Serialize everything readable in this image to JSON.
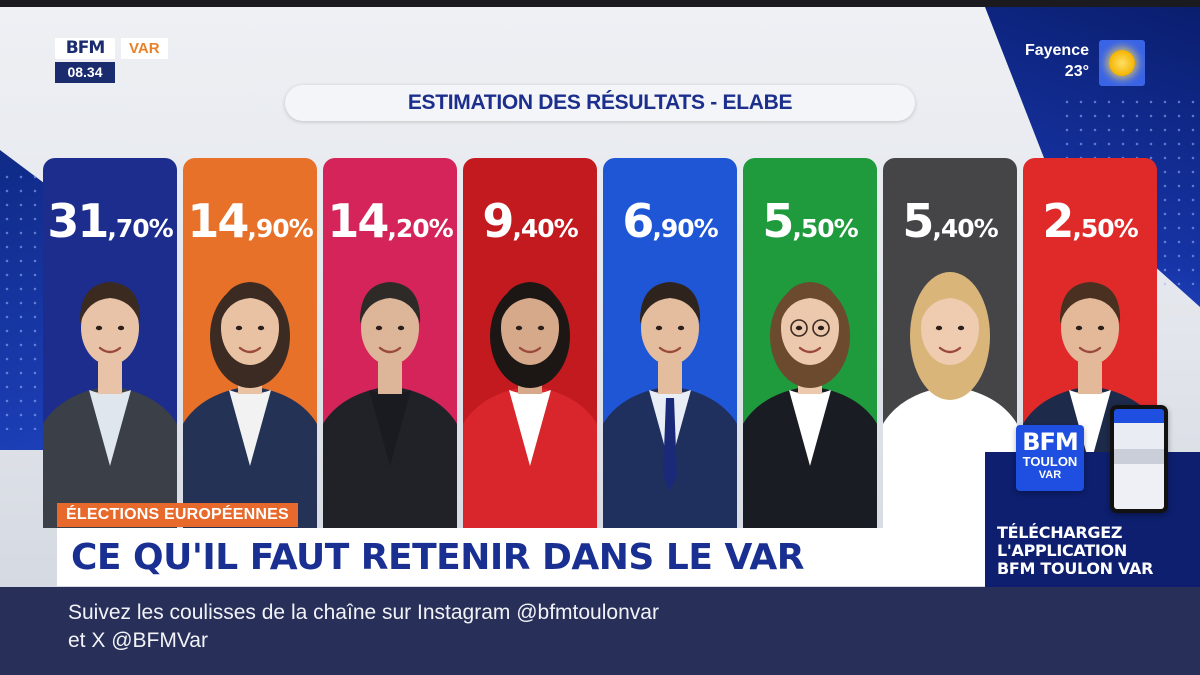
{
  "channel": {
    "brand": "BFM",
    "region": "VAR",
    "time": "08.34"
  },
  "weather": {
    "city": "Fayence",
    "temp": "23°",
    "icon": "sun-icon"
  },
  "graphic": {
    "title": "ESTIMATION DES RÉSULTATS - ELABE",
    "candidates": [
      {
        "whole": "31",
        "decimal": ",70%",
        "value": 31.7,
        "color": "#1d2d8e",
        "suit": "#3a3f48",
        "shirt": "#dfe6ee",
        "skin": "#e8c3a8",
        "hair": "#3b2a20"
      },
      {
        "whole": "14",
        "decimal": ",90%",
        "value": 14.9,
        "color": "#e8712a",
        "suit": "#243256",
        "shirt": "#f2f2f2",
        "skin": "#e9c2a3",
        "hair": "#3c2b22"
      },
      {
        "whole": "14",
        "decimal": ",20%",
        "value": 14.2,
        "color": "#d4245a",
        "suit": "#202228",
        "shirt": "#1a1b20",
        "skin": "#ddb69a",
        "hair": "#2e2a28"
      },
      {
        "whole": "9",
        "decimal": ",40%",
        "value": 9.4,
        "color": "#c21a1f",
        "suit": "#d8262c",
        "shirt": "#ffffff",
        "skin": "#d7a98b",
        "hair": "#1c1614"
      },
      {
        "whole": "6",
        "decimal": ",90%",
        "value": 6.9,
        "color": "#1f56d6",
        "suit": "#1f2f5e",
        "shirt": "#e9eef6",
        "skin": "#e4bd9f",
        "hair": "#2f241d"
      },
      {
        "whole": "5",
        "decimal": ",50%",
        "value": 5.5,
        "color": "#1f9a3c",
        "suit": "#1a1c24",
        "shirt": "#ffffff",
        "skin": "#ecc8ad",
        "hair": "#6b4a2e"
      },
      {
        "whole": "5",
        "decimal": ",40%",
        "value": 5.4,
        "color": "#454548",
        "suit": "#ffffff",
        "shirt": "#ffffff",
        "skin": "#efcbb0",
        "hair": "#d9b57a"
      },
      {
        "whole": "2",
        "decimal": ",50%",
        "value": 2.5,
        "color": "#e02a2a",
        "suit": "#1e2a4a",
        "shirt": "#ffffff",
        "skin": "#e3b99a",
        "hair": "#4a3020"
      }
    ]
  },
  "lower_third": {
    "tag": "ÉLECTIONS EUROPÉENNES",
    "headline": "CE QU'IL FAUT RETENIR DANS LE VAR"
  },
  "promo": {
    "app_brand": "BFM",
    "app_city": "TOULON",
    "app_region": "VAR",
    "line1": "TÉLÉCHARGEZ",
    "line2": "L'APPLICATION",
    "line3": "BFM TOULON VAR"
  },
  "ticker": {
    "line1": "Suivez les coulisses de la chaîne sur Instagram @bfmtoulonvar",
    "line2": "et X @BFMVar"
  }
}
